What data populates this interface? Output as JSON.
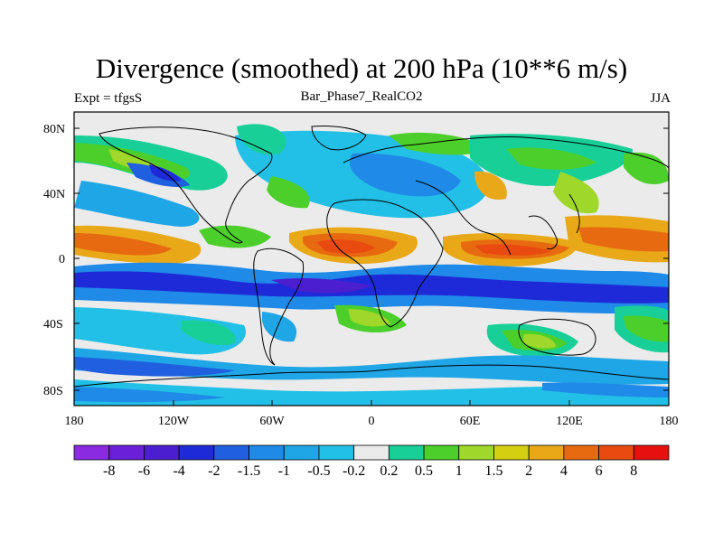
{
  "title": "Divergence (smoothed) at 200 hPa (10**6 m/s)",
  "left_label": "Expt = tfgsS",
  "center_label": "Bar_Phase7_RealCO2",
  "right_label": "JJA",
  "y_ticks": [
    "80N",
    "40N",
    "0",
    "40S",
    "80S"
  ],
  "x_ticks": [
    "180",
    "120W",
    "60W",
    "0",
    "60E",
    "120E",
    "180"
  ],
  "colorbar": {
    "labels": [
      "-8",
      "-6",
      "-4",
      "-2",
      "-1.5",
      "-1",
      "-0.5",
      "-0.2",
      "0.2",
      "0.5",
      "1",
      "1.5",
      "2",
      "4",
      "6",
      "8"
    ],
    "colors": [
      "#8a2be2",
      "#6a1fd8",
      "#4b1fd0",
      "#1e2ad8",
      "#1f5fe0",
      "#1f8ae8",
      "#1fa6e6",
      "#22c0e6",
      "#ebebeb",
      "#18cf98",
      "#4ccf2a",
      "#9fd72a",
      "#d4cf10",
      "#e8a818",
      "#e86a10",
      "#e84a10",
      "#e61010"
    ]
  },
  "map_regions": [
    {
      "name": "equatorial-convergence-band",
      "color": "#1e2ad8"
    },
    {
      "name": "africa-divergence",
      "color": "#e86a10"
    },
    {
      "name": "indian-ocean-divergence",
      "color": "#e84a10"
    }
  ]
}
